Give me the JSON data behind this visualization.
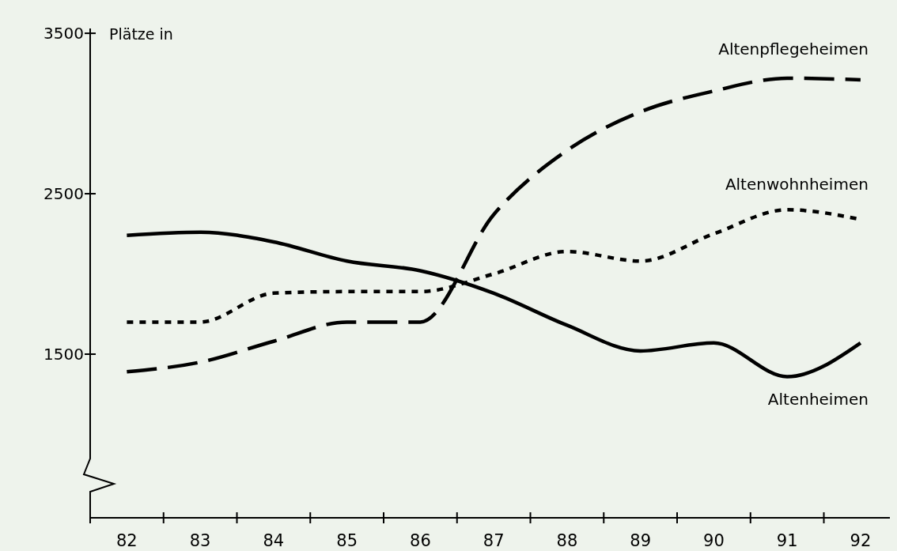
{
  "chart_data": {
    "type": "line",
    "ylabel": "Plätze in",
    "x": [
      82,
      83,
      84,
      85,
      86,
      87,
      88,
      89,
      90,
      91,
      92
    ],
    "xlim": [
      81.5,
      92.4
    ],
    "xticks": [
      {
        "value": 81.5,
        "label": null
      },
      {
        "value": 82,
        "label": "82"
      },
      {
        "value": 82.5,
        "label": null
      },
      {
        "value": 83,
        "label": "83"
      },
      {
        "value": 83.5,
        "label": null
      },
      {
        "value": 84,
        "label": "84"
      },
      {
        "value": 84.5,
        "label": null
      },
      {
        "value": 85,
        "label": "85"
      },
      {
        "value": 85.5,
        "label": null
      },
      {
        "value": 86,
        "label": "86"
      },
      {
        "value": 86.5,
        "label": null
      },
      {
        "value": 87,
        "label": "87"
      },
      {
        "value": 87.5,
        "label": null
      },
      {
        "value": 88,
        "label": "88"
      },
      {
        "value": 88.5,
        "label": null
      },
      {
        "value": 89,
        "label": "89"
      },
      {
        "value": 89.5,
        "label": null
      },
      {
        "value": 90,
        "label": "90"
      },
      {
        "value": 90.5,
        "label": null
      },
      {
        "value": 91,
        "label": "91"
      },
      {
        "value": 91.5,
        "label": null
      },
      {
        "value": 92,
        "label": "92"
      }
    ],
    "ylim": [
      480,
      3530
    ],
    "yticks": [
      1500,
      2500,
      3500
    ],
    "grid": false,
    "marker": "none",
    "series": [
      {
        "name": "Altenpflegeheimen",
        "color": "#000000",
        "line_style": "dashed",
        "values": [
          1390,
          1450,
          1580,
          1700,
          1700,
          2370,
          2770,
          3010,
          3140,
          3220,
          3210
        ]
      },
      {
        "name": "Altenwohnheimen",
        "color": "#000000",
        "line_style": "dotted",
        "values": [
          1700,
          1700,
          1880,
          1890,
          1890,
          2000,
          2140,
          2080,
          2250,
          2400,
          2340
        ]
      },
      {
        "name": "Altenheimen",
        "color": "#000000",
        "line_style": "solid",
        "values": [
          2240,
          2260,
          2200,
          2080,
          2020,
          1880,
          1680,
          1520,
          1570,
          1360,
          1570
        ]
      }
    ]
  }
}
